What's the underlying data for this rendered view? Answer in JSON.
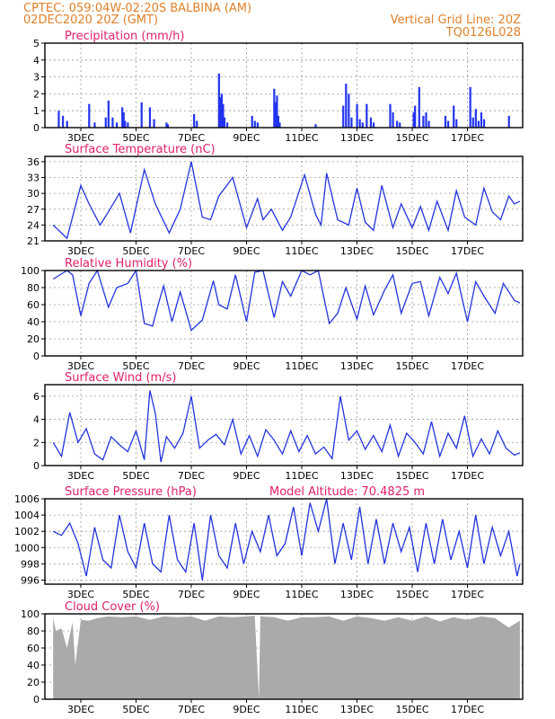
{
  "header": {
    "source_loc": "CPTEC:   059:04W-02:20S   BALBINA (AM)",
    "date": "02DEC2020 20Z (GMT)",
    "grid_note": "Vertical Grid Line: 20Z",
    "code": "TQ0126L028"
  },
  "colors": {
    "line": "#2233dd",
    "bars": "#2233ee",
    "cloud": "#aaaaaa",
    "header": "#e0802a",
    "title": "#e0206a"
  },
  "chart_data": [
    {
      "type": "bar",
      "title": "Precipitation (mm/h)",
      "x_ticks": [
        "3DEC",
        "5DEC",
        "7DEC",
        "9DEC",
        "11DEC",
        "13DEC",
        "15DEC",
        "17DEC"
      ],
      "ylim": [
        0,
        5
      ],
      "y_ticks": [
        0,
        1,
        2,
        3,
        4,
        5
      ],
      "x_days": [
        0.2,
        0.35,
        0.5,
        1.3,
        1.5,
        1.9,
        2.0,
        2.15,
        2.3,
        2.5,
        2.55,
        2.6,
        2.7,
        3.2,
        3.5,
        3.65,
        4.1,
        4.15,
        5.1,
        5.2,
        6.0,
        6.05,
        6.1,
        6.15,
        6.2,
        6.3,
        7.2,
        7.3,
        7.4,
        8.0,
        8.05,
        8.1,
        8.15,
        8.2,
        9.5,
        10.5,
        10.6,
        10.7,
        10.8,
        11.0,
        11.1,
        11.2,
        11.35,
        11.5,
        11.6,
        12.2,
        12.3,
        12.45,
        12.55,
        13.05,
        13.1,
        13.25,
        13.4,
        13.5,
        13.6,
        14.2,
        14.3,
        14.5,
        14.6,
        15.1,
        15.2,
        15.3,
        15.4,
        15.5,
        15.6,
        16.5
      ],
      "values": [
        1.0,
        0.7,
        0.4,
        1.4,
        0.3,
        0.6,
        1.6,
        0.6,
        0.3,
        1.2,
        0.9,
        0.4,
        0.3,
        1.5,
        1.2,
        0.5,
        0.3,
        0.2,
        0.8,
        0.4,
        3.2,
        1.8,
        2.0,
        1.4,
        0.6,
        0.3,
        0.7,
        0.4,
        0.3,
        2.3,
        1.5,
        1.9,
        0.7,
        0.3,
        0.2,
        1.3,
        2.6,
        2.0,
        0.6,
        1.4,
        0.5,
        0.3,
        1.4,
        0.6,
        0.3,
        1.4,
        0.9,
        0.4,
        0.3,
        0.9,
        1.3,
        2.4,
        0.7,
        0.9,
        0.4,
        0.7,
        0.4,
        1.3,
        0.5,
        2.4,
        0.6,
        1.1,
        0.4,
        0.9,
        0.5,
        0.7
      ]
    },
    {
      "type": "line",
      "title": "Surface Temperature (nC)",
      "x_ticks": [
        "3DEC",
        "5DEC",
        "7DEC",
        "9DEC",
        "11DEC",
        "13DEC",
        "15DEC",
        "17DEC"
      ],
      "ylim": [
        21,
        37
      ],
      "y_ticks": [
        21,
        24,
        27,
        30,
        33,
        36
      ],
      "x_days": [
        0,
        0.5,
        1.0,
        1.3,
        1.7,
        2.0,
        2.4,
        2.8,
        3.3,
        3.7,
        4.2,
        4.6,
        5.0,
        5.4,
        5.7,
        6.0,
        6.5,
        7.0,
        7.4,
        7.6,
        7.9,
        8.3,
        8.6,
        9.1,
        9.5,
        9.7,
        9.9,
        10.3,
        10.7,
        11.0,
        11.3,
        11.6,
        11.9,
        12.3,
        12.6,
        13.0,
        13.3,
        13.6,
        13.9,
        14.3,
        14.6,
        14.9,
        15.3,
        15.6,
        15.9,
        16.2,
        16.5,
        16.7,
        16.9
      ],
      "values": [
        24.0,
        21.5,
        31.5,
        28.0,
        24.0,
        26.5,
        30.0,
        22.5,
        34.5,
        28.0,
        22.5,
        27.0,
        36.0,
        25.5,
        25.0,
        29.5,
        33.0,
        23.5,
        29.0,
        25.0,
        27.0,
        23.0,
        25.5,
        33.5,
        26.0,
        24.0,
        33.8,
        25.0,
        24.0,
        31.0,
        24.5,
        23.0,
        31.5,
        23.5,
        28.0,
        23.5,
        27.5,
        23.0,
        28.5,
        23.0,
        30.5,
        25.5,
        24.0,
        31.0,
        26.5,
        25.0,
        29.5,
        28.0,
        28.5
      ]
    },
    {
      "type": "line",
      "title": "Relative Humidity (%)",
      "x_ticks": [
        "3DEC",
        "5DEC",
        "7DEC",
        "9DEC",
        "11DEC",
        "13DEC",
        "15DEC",
        "17DEC"
      ],
      "ylim": [
        0,
        100
      ],
      "y_ticks": [
        0,
        20,
        40,
        60,
        80,
        100
      ],
      "x_days": [
        0,
        0.5,
        0.7,
        1.0,
        1.3,
        1.6,
        2.0,
        2.3,
        2.7,
        3.0,
        3.3,
        3.6,
        3.8,
        4.0,
        4.3,
        4.6,
        5.0,
        5.4,
        5.8,
        6.0,
        6.3,
        6.6,
        7.0,
        7.3,
        7.6,
        8.0,
        8.3,
        8.6,
        9.0,
        9.3,
        9.6,
        10.0,
        10.3,
        10.6,
        11.0,
        11.3,
        11.6,
        12.0,
        12.3,
        12.6,
        13.0,
        13.3,
        13.6,
        14.0,
        14.3,
        14.6,
        15.0,
        15.3,
        15.6,
        16.0,
        16.3,
        16.7,
        16.9
      ],
      "values": [
        90,
        100,
        95,
        47,
        85,
        100,
        57,
        80,
        85,
        100,
        38,
        35,
        60,
        82,
        40,
        75,
        30,
        42,
        88,
        60,
        55,
        95,
        40,
        98,
        100,
        45,
        87,
        70,
        100,
        95,
        100,
        38,
        50,
        80,
        43,
        82,
        48,
        77,
        95,
        50,
        85,
        87,
        47,
        92,
        73,
        97,
        40,
        87,
        70,
        50,
        85,
        65,
        62
      ]
    },
    {
      "type": "line",
      "title": "Surface Wind (m/s)",
      "x_ticks": [
        "3DEC",
        "5DEC",
        "7DEC",
        "9DEC",
        "11DEC",
        "13DEC",
        "15DEC",
        "17DEC"
      ],
      "ylim": [
        0,
        7
      ],
      "y_ticks": [
        0,
        2,
        4,
        6
      ],
      "x_days": [
        0,
        0.3,
        0.6,
        0.9,
        1.2,
        1.5,
        1.8,
        2.1,
        2.4,
        2.7,
        3.0,
        3.3,
        3.5,
        3.7,
        3.9,
        4.1,
        4.4,
        4.7,
        5.0,
        5.3,
        5.6,
        5.9,
        6.2,
        6.5,
        6.8,
        7.1,
        7.4,
        7.7,
        8.0,
        8.3,
        8.6,
        8.9,
        9.2,
        9.5,
        9.8,
        10.1,
        10.4,
        10.7,
        11.0,
        11.3,
        11.6,
        11.9,
        12.2,
        12.5,
        12.8,
        13.1,
        13.4,
        13.7,
        14.0,
        14.3,
        14.6,
        14.9,
        15.2,
        15.5,
        15.8,
        16.1,
        16.4,
        16.7,
        16.9
      ],
      "values": [
        2.0,
        0.8,
        4.6,
        2.0,
        3.2,
        1.0,
        0.5,
        2.5,
        1.8,
        1.2,
        3.0,
        0.5,
        6.5,
        4.5,
        0.3,
        2.5,
        1.5,
        2.8,
        6.0,
        1.5,
        2.2,
        2.7,
        1.8,
        4.0,
        1.0,
        2.6,
        0.8,
        3.1,
        2.2,
        1.0,
        3.0,
        1.2,
        2.6,
        1.0,
        1.6,
        0.6,
        6.0,
        2.2,
        3.0,
        1.4,
        2.6,
        1.2,
        3.5,
        0.8,
        2.8,
        2.0,
        1.0,
        3.8,
        0.8,
        2.8,
        1.5,
        4.3,
        0.8,
        2.3,
        1.0,
        3.0,
        1.5,
        0.9,
        1.1
      ]
    },
    {
      "type": "line",
      "title": "Surface Pressure (hPa)",
      "annotation": "Model Altitude: 70.4825 m",
      "x_ticks": [
        "3DEC",
        "5DEC",
        "7DEC",
        "9DEC",
        "11DEC",
        "13DEC",
        "15DEC",
        "17DEC"
      ],
      "ylim": [
        995.5,
        1006
      ],
      "y_ticks": [
        996,
        998,
        1000,
        1002,
        1004,
        1006
      ],
      "x_days": [
        0,
        0.3,
        0.6,
        0.9,
        1.2,
        1.5,
        1.8,
        2.1,
        2.4,
        2.7,
        3.0,
        3.3,
        3.6,
        3.9,
        4.2,
        4.5,
        4.8,
        5.1,
        5.4,
        5.7,
        6.0,
        6.3,
        6.6,
        6.9,
        7.2,
        7.5,
        7.8,
        8.1,
        8.4,
        8.7,
        9.0,
        9.3,
        9.6,
        9.9,
        10.2,
        10.5,
        10.8,
        11.1,
        11.4,
        11.7,
        12.0,
        12.3,
        12.6,
        12.9,
        13.2,
        13.5,
        13.8,
        14.1,
        14.4,
        14.7,
        15.0,
        15.3,
        15.6,
        15.9,
        16.2,
        16.5,
        16.8,
        16.9
      ],
      "values": [
        1002.0,
        1001.5,
        1003.0,
        1000.5,
        996.5,
        1002.5,
        998.5,
        997.5,
        1004.0,
        999.5,
        997.5,
        1003.0,
        998.0,
        997.0,
        1004.0,
        998.5,
        997.0,
        1003.0,
        996.0,
        1004.0,
        999.0,
        997.5,
        1003.0,
        998.0,
        1002.0,
        999.5,
        1004.0,
        999.0,
        1000.5,
        1005.0,
        999.0,
        1005.5,
        1002.0,
        1006.0,
        998.0,
        1003.0,
        998.5,
        1005.0,
        998.0,
        1003.5,
        998.0,
        1003.0,
        999.5,
        1002.5,
        997.0,
        1003.0,
        998.0,
        1003.5,
        998.5,
        1002.0,
        997.5,
        1004.0,
        998.0,
        1002.5,
        999.0,
        1002.0,
        996.5,
        998.0
      ]
    },
    {
      "type": "area",
      "title": "Cloud Cover (%)",
      "x_ticks": [
        "3DEC",
        "5DEC",
        "7DEC",
        "9DEC",
        "11DEC",
        "13DEC",
        "15DEC",
        "17DEC"
      ],
      "ylim": [
        0,
        100
      ],
      "y_ticks": [
        0,
        20,
        40,
        60,
        80,
        100
      ],
      "x_days": [
        0,
        0.1,
        0.3,
        0.5,
        0.7,
        0.8,
        1.0,
        1.3,
        1.6,
        2.0,
        2.5,
        3.0,
        3.5,
        4.0,
        4.5,
        5.0,
        5.5,
        6.0,
        6.5,
        7.0,
        7.3,
        7.45,
        7.5,
        7.55,
        8.0,
        8.5,
        9.0,
        9.5,
        10.0,
        10.5,
        11.0,
        11.5,
        12.0,
        12.5,
        13.0,
        13.5,
        14.0,
        14.5,
        15.0,
        15.5,
        16.0,
        16.5,
        16.9
      ],
      "values": [
        95,
        80,
        83,
        60,
        90,
        40,
        93,
        92,
        95,
        97,
        96,
        97,
        93,
        97,
        96,
        97,
        92,
        97,
        96,
        97,
        98,
        0,
        98,
        97,
        96,
        92,
        96,
        96,
        97,
        92,
        97,
        95,
        92,
        96,
        92,
        97,
        91,
        96,
        93,
        97,
        95,
        84,
        92
      ]
    }
  ]
}
